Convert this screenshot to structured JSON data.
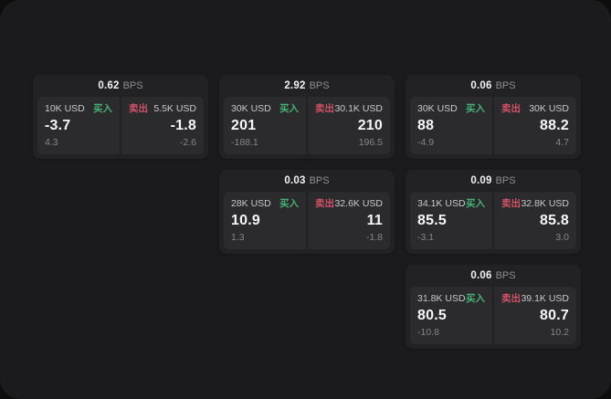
{
  "labels": {
    "buy": "买入",
    "sell": "卖出",
    "bps_suffix": "BPS"
  },
  "colors": {
    "buy_accent": "#46b175",
    "sell_accent": "#ce5268",
    "panel_bg": "#1b1b1d",
    "card_bg": "#222224",
    "tile_bg": "#2b2b2d"
  },
  "cards": [
    {
      "bps": "0.62",
      "row": 1,
      "col": 1,
      "buy": {
        "amount": "10K USD",
        "price": "-3.7",
        "delta": "4.3"
      },
      "sell": {
        "amount": "5.5K USD",
        "price": "-1.8",
        "delta": "-2.6"
      }
    },
    {
      "bps": "2.92",
      "row": 1,
      "col": 2,
      "buy": {
        "amount": "30K USD",
        "price": "201",
        "delta": "-188.1"
      },
      "sell": {
        "amount": "30.1K USD",
        "price": "210",
        "delta": "196.5"
      }
    },
    {
      "bps": "0.06",
      "row": 1,
      "col": 3,
      "buy": {
        "amount": "30K USD",
        "price": "88",
        "delta": "-4.9"
      },
      "sell": {
        "amount": "30K USD",
        "price": "88.2",
        "delta": "4.7"
      }
    },
    {
      "bps": "0.03",
      "row": 2,
      "col": 2,
      "buy": {
        "amount": "28K USD",
        "price": "10.9",
        "delta": "1.3"
      },
      "sell": {
        "amount": "32.6K USD",
        "price": "11",
        "delta": "-1.8"
      }
    },
    {
      "bps": "0.09",
      "row": 2,
      "col": 3,
      "buy": {
        "amount": "34.1K USD",
        "price": "85.5",
        "delta": "-3.1"
      },
      "sell": {
        "amount": "32.8K USD",
        "price": "85.8",
        "delta": "3.0"
      }
    },
    {
      "bps": "0.06",
      "row": 3,
      "col": 3,
      "buy": {
        "amount": "31.8K USD",
        "price": "80.5",
        "delta": "-10.8"
      },
      "sell": {
        "amount": "39.1K USD",
        "price": "80.7",
        "delta": "10.2"
      }
    }
  ]
}
